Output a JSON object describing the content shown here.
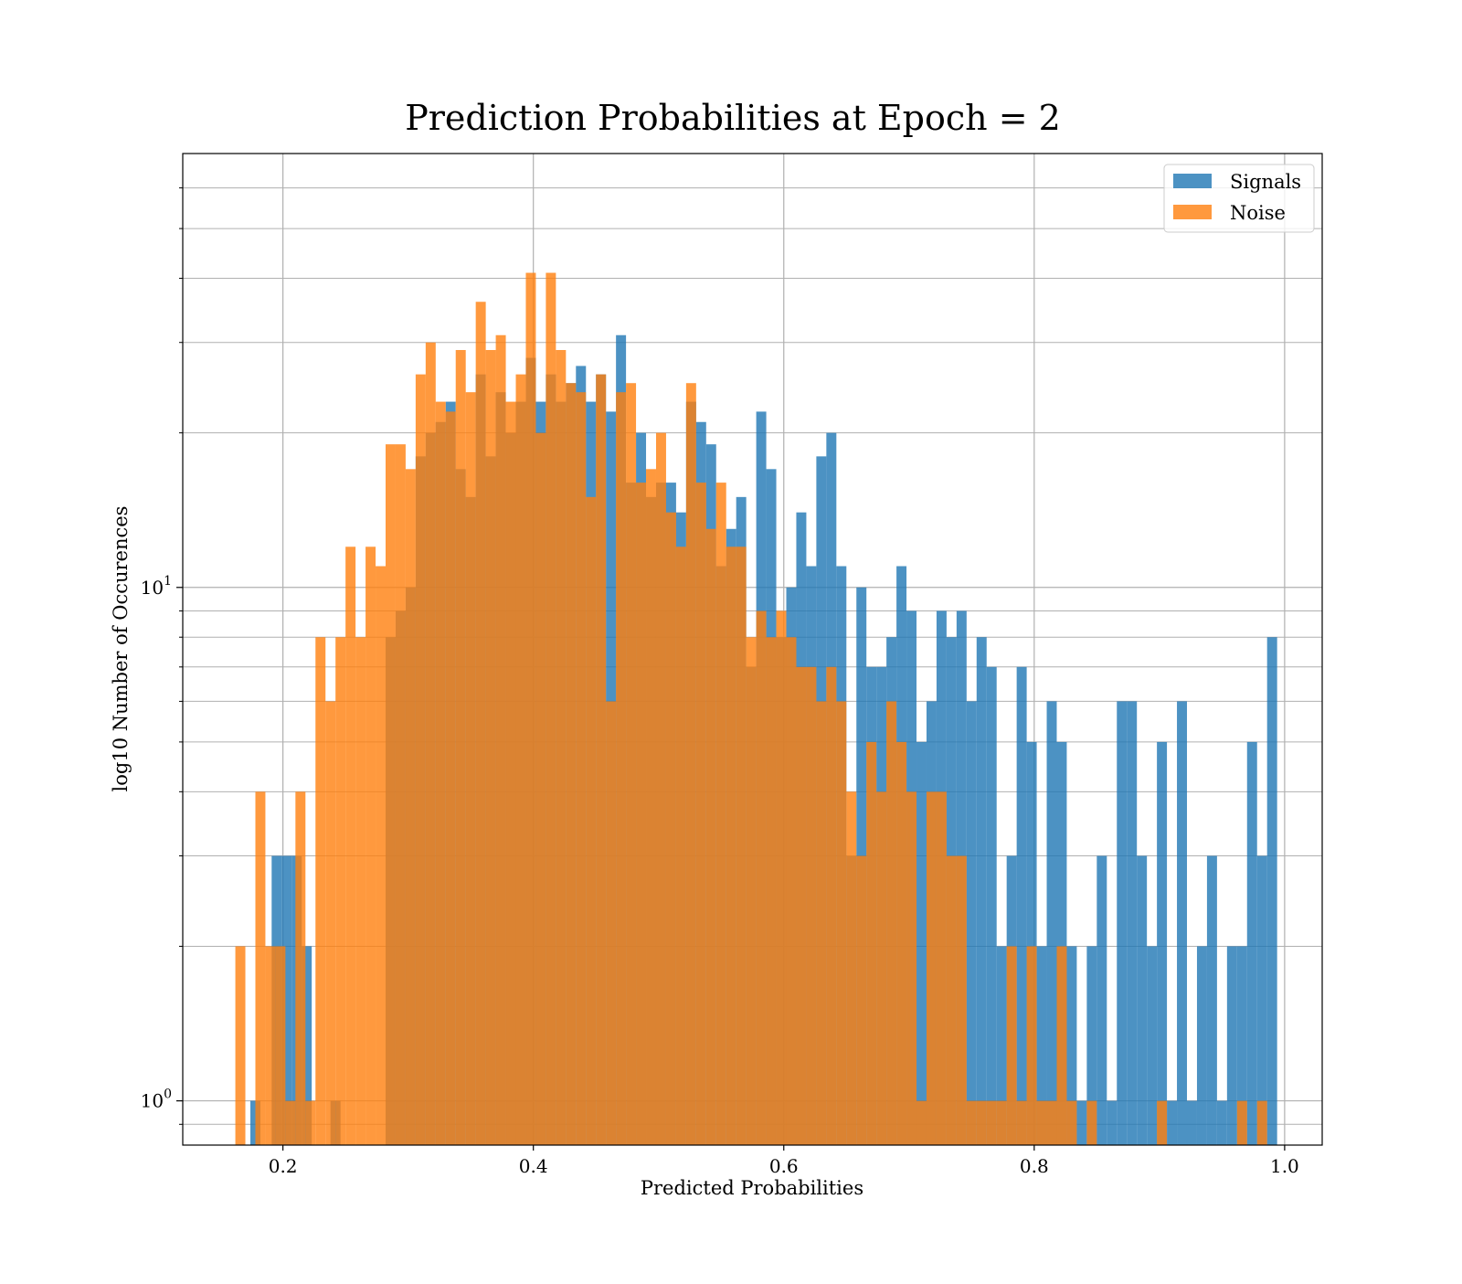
{
  "chart_data": {
    "type": "histogram",
    "title": "Prediction Probabilities at Epoch = 2",
    "xlabel": "Predicted Probabilities",
    "ylabel": "log10 Number of Occurences",
    "xlim": [
      0.12,
      1.03
    ],
    "ylim": [
      0.82,
      70
    ],
    "y_scale": "log",
    "grid": true,
    "legend_position": "top-right",
    "x_ticks": [
      "0.2",
      "0.4",
      "0.6",
      "0.8",
      "1.0"
    ],
    "y_ticks": [
      {
        "base": "10",
        "exp": "0",
        "value": 1
      },
      {
        "base": "10",
        "exp": "1",
        "value": 10
      }
    ],
    "series": [
      {
        "name": "Signals",
        "color": "#1f77b4",
        "opacity": 0.8,
        "bins": [
          [
            0.174,
            0.182,
            1
          ],
          [
            0.191,
            0.199,
            3
          ],
          [
            0.199,
            0.207,
            3
          ],
          [
            0.207,
            0.215,
            3
          ],
          [
            0.215,
            0.223,
            2
          ],
          [
            0.238,
            0.246,
            1
          ],
          [
            0.282,
            0.29,
            8
          ],
          [
            0.29,
            0.298,
            9
          ],
          [
            0.298,
            0.306,
            10
          ],
          [
            0.306,
            0.314,
            18
          ],
          [
            0.314,
            0.322,
            20
          ],
          [
            0.322,
            0.33,
            21
          ],
          [
            0.33,
            0.338,
            23
          ],
          [
            0.338,
            0.346,
            17
          ],
          [
            0.346,
            0.354,
            15
          ],
          [
            0.354,
            0.362,
            26
          ],
          [
            0.362,
            0.37,
            18
          ],
          [
            0.37,
            0.378,
            24
          ],
          [
            0.378,
            0.386,
            20
          ],
          [
            0.386,
            0.394,
            23
          ],
          [
            0.394,
            0.402,
            28
          ],
          [
            0.402,
            0.41,
            23
          ],
          [
            0.41,
            0.418,
            26
          ],
          [
            0.418,
            0.426,
            23
          ],
          [
            0.426,
            0.434,
            25
          ],
          [
            0.434,
            0.442,
            27
          ],
          [
            0.442,
            0.45,
            23
          ],
          [
            0.45,
            0.458,
            26
          ],
          [
            0.458,
            0.466,
            22
          ],
          [
            0.466,
            0.474,
            31
          ],
          [
            0.474,
            0.482,
            16
          ],
          [
            0.482,
            0.49,
            20
          ],
          [
            0.49,
            0.498,
            15
          ],
          [
            0.498,
            0.506,
            16
          ],
          [
            0.506,
            0.514,
            16
          ],
          [
            0.514,
            0.522,
            14
          ],
          [
            0.522,
            0.53,
            23
          ],
          [
            0.53,
            0.538,
            21
          ],
          [
            0.538,
            0.546,
            19
          ],
          [
            0.546,
            0.554,
            11
          ],
          [
            0.554,
            0.562,
            13
          ],
          [
            0.562,
            0.57,
            15
          ],
          [
            0.57,
            0.578,
            7
          ],
          [
            0.578,
            0.586,
            22
          ],
          [
            0.586,
            0.594,
            17
          ],
          [
            0.594,
            0.602,
            8
          ],
          [
            0.602,
            0.61,
            10
          ],
          [
            0.61,
            0.618,
            14
          ],
          [
            0.618,
            0.626,
            11
          ],
          [
            0.626,
            0.634,
            18
          ],
          [
            0.634,
            0.642,
            20
          ],
          [
            0.642,
            0.65,
            11
          ],
          [
            0.65,
            0.658,
            3
          ],
          [
            0.658,
            0.666,
            10
          ],
          [
            0.666,
            0.674,
            7
          ],
          [
            0.674,
            0.682,
            7
          ],
          [
            0.682,
            0.69,
            8
          ],
          [
            0.69,
            0.698,
            11
          ],
          [
            0.698,
            0.706,
            9
          ],
          [
            0.706,
            0.714,
            5
          ],
          [
            0.714,
            0.722,
            6
          ],
          [
            0.722,
            0.73,
            9
          ],
          [
            0.73,
            0.738,
            8
          ],
          [
            0.738,
            0.746,
            9
          ],
          [
            0.746,
            0.754,
            6
          ],
          [
            0.754,
            0.762,
            8
          ],
          [
            0.762,
            0.77,
            7
          ],
          [
            0.77,
            0.778,
            2
          ],
          [
            0.778,
            0.786,
            3
          ],
          [
            0.786,
            0.794,
            7
          ],
          [
            0.794,
            0.802,
            5
          ],
          [
            0.802,
            0.81,
            2
          ],
          [
            0.81,
            0.818,
            6
          ],
          [
            0.818,
            0.826,
            5
          ],
          [
            0.826,
            0.834,
            2
          ],
          [
            0.834,
            0.842,
            1
          ],
          [
            0.842,
            0.85,
            2
          ],
          [
            0.85,
            0.858,
            3
          ],
          [
            0.858,
            0.866,
            1
          ],
          [
            0.866,
            0.874,
            6
          ],
          [
            0.874,
            0.882,
            6
          ],
          [
            0.882,
            0.89,
            3
          ],
          [
            0.89,
            0.898,
            2
          ],
          [
            0.898,
            0.906,
            5
          ],
          [
            0.906,
            0.914,
            1
          ],
          [
            0.914,
            0.922,
            6
          ],
          [
            0.922,
            0.93,
            1
          ],
          [
            0.93,
            0.938,
            2
          ],
          [
            0.938,
            0.946,
            3
          ],
          [
            0.946,
            0.954,
            1
          ],
          [
            0.954,
            0.962,
            2
          ],
          [
            0.962,
            0.97,
            2
          ],
          [
            0.97,
            0.978,
            5
          ],
          [
            0.978,
            0.986,
            3
          ],
          [
            0.986,
            0.994,
            8
          ]
        ]
      },
      {
        "name": "Noise",
        "color": "#ff7f0e",
        "opacity": 0.8,
        "bins": [
          [
            0.162,
            0.17,
            2
          ],
          [
            0.178,
            0.186,
            4
          ],
          [
            0.186,
            0.194,
            2
          ],
          [
            0.194,
            0.202,
            2
          ],
          [
            0.202,
            0.21,
            1
          ],
          [
            0.21,
            0.218,
            4
          ],
          [
            0.218,
            0.226,
            1
          ],
          [
            0.226,
            0.234,
            8
          ],
          [
            0.234,
            0.242,
            6
          ],
          [
            0.242,
            0.25,
            8
          ],
          [
            0.25,
            0.258,
            12
          ],
          [
            0.258,
            0.266,
            8
          ],
          [
            0.266,
            0.274,
            12
          ],
          [
            0.274,
            0.282,
            11
          ],
          [
            0.282,
            0.29,
            19
          ],
          [
            0.29,
            0.298,
            19
          ],
          [
            0.298,
            0.306,
            17
          ],
          [
            0.306,
            0.314,
            26
          ],
          [
            0.314,
            0.322,
            30
          ],
          [
            0.322,
            0.33,
            23
          ],
          [
            0.33,
            0.338,
            22
          ],
          [
            0.338,
            0.346,
            29
          ],
          [
            0.346,
            0.354,
            24
          ],
          [
            0.354,
            0.362,
            36
          ],
          [
            0.362,
            0.37,
            29
          ],
          [
            0.37,
            0.378,
            31
          ],
          [
            0.378,
            0.386,
            23
          ],
          [
            0.386,
            0.394,
            26
          ],
          [
            0.394,
            0.402,
            41
          ],
          [
            0.402,
            0.41,
            20
          ],
          [
            0.41,
            0.418,
            41
          ],
          [
            0.418,
            0.426,
            29
          ],
          [
            0.426,
            0.434,
            25
          ],
          [
            0.434,
            0.442,
            24
          ],
          [
            0.442,
            0.45,
            15
          ],
          [
            0.45,
            0.458,
            26
          ],
          [
            0.458,
            0.466,
            6
          ],
          [
            0.466,
            0.474,
            24
          ],
          [
            0.474,
            0.482,
            25
          ],
          [
            0.482,
            0.49,
            16
          ],
          [
            0.49,
            0.498,
            17
          ],
          [
            0.498,
            0.506,
            20
          ],
          [
            0.506,
            0.514,
            14
          ],
          [
            0.514,
            0.522,
            12
          ],
          [
            0.522,
            0.53,
            25
          ],
          [
            0.53,
            0.538,
            16
          ],
          [
            0.538,
            0.546,
            13
          ],
          [
            0.546,
            0.554,
            16
          ],
          [
            0.554,
            0.562,
            12
          ],
          [
            0.562,
            0.57,
            12
          ],
          [
            0.57,
            0.578,
            8
          ],
          [
            0.578,
            0.586,
            9
          ],
          [
            0.586,
            0.594,
            8
          ],
          [
            0.594,
            0.602,
            9
          ],
          [
            0.602,
            0.61,
            8
          ],
          [
            0.61,
            0.618,
            7
          ],
          [
            0.618,
            0.626,
            7
          ],
          [
            0.626,
            0.634,
            6
          ],
          [
            0.634,
            0.642,
            7
          ],
          [
            0.642,
            0.65,
            6
          ],
          [
            0.65,
            0.658,
            4
          ],
          [
            0.658,
            0.666,
            3
          ],
          [
            0.666,
            0.674,
            5
          ],
          [
            0.674,
            0.682,
            4
          ],
          [
            0.682,
            0.69,
            6
          ],
          [
            0.69,
            0.698,
            5
          ],
          [
            0.698,
            0.706,
            4
          ],
          [
            0.706,
            0.714,
            1
          ],
          [
            0.714,
            0.722,
            4
          ],
          [
            0.722,
            0.73,
            4
          ],
          [
            0.73,
            0.738,
            3
          ],
          [
            0.738,
            0.746,
            3
          ],
          [
            0.746,
            0.754,
            1
          ],
          [
            0.754,
            0.762,
            1
          ],
          [
            0.762,
            0.77,
            1
          ],
          [
            0.77,
            0.778,
            1
          ],
          [
            0.778,
            0.786,
            2
          ],
          [
            0.786,
            0.794,
            1
          ],
          [
            0.794,
            0.802,
            2
          ],
          [
            0.802,
            0.81,
            1
          ],
          [
            0.81,
            0.818,
            1
          ],
          [
            0.818,
            0.826,
            2
          ],
          [
            0.826,
            0.834,
            1
          ],
          [
            0.842,
            0.85,
            1
          ],
          [
            0.898,
            0.906,
            1
          ],
          [
            0.962,
            0.97,
            1
          ],
          [
            0.978,
            0.986,
            1
          ]
        ]
      }
    ]
  }
}
